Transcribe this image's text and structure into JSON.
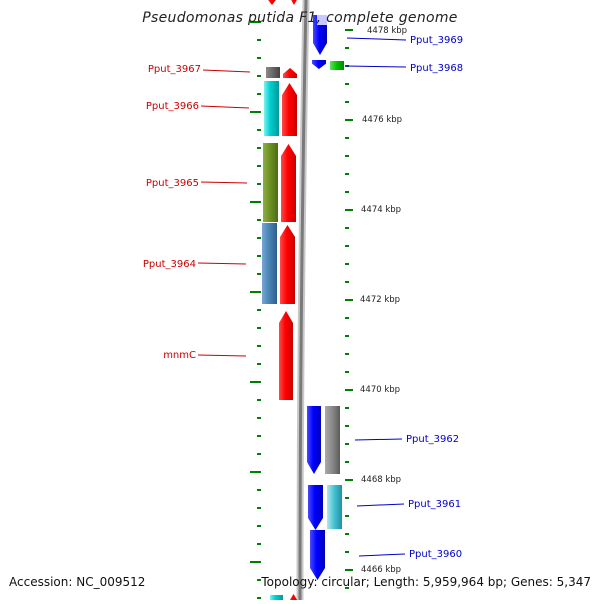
{
  "title": "Pseudomonas putida F1, complete genome",
  "footer": {
    "accession": "Accession: NC_009512",
    "topology": "Topology: circular; Length: 5,959,964 bp; Genes: 5,347"
  },
  "colors": {
    "forward": "#ff0000",
    "reverse": "#0000ff",
    "backbone": "#8a8a8a",
    "tick": "#008000",
    "left_label": "#cc0000",
    "right_label": "#0000cc"
  },
  "scale_labels": [
    "4478 kbp",
    "4476 kbp",
    "4474 kbp",
    "4472 kbp",
    "4470 kbp",
    "4468 kbp",
    "4466 kbp"
  ],
  "left_genes": [
    {
      "name": "Pput_3967",
      "cog_color": "#666666"
    },
    {
      "name": "Pput_3966",
      "cog_color": "#00cccc"
    },
    {
      "name": "Pput_3965",
      "cog_color": "#6b8e23"
    },
    {
      "name": "Pput_3964",
      "cog_color": "#4682b4"
    },
    {
      "name": "mnmC",
      "cog_color": ""
    }
  ],
  "right_genes": [
    {
      "name": "Pput_3969",
      "cog_color": ""
    },
    {
      "name": "Pput_3968",
      "cog_color": "#00cc00"
    },
    {
      "name": "Pput_3962",
      "cog_color": "#707070"
    },
    {
      "name": "Pput_3961",
      "cog_color": "#40c0d0"
    },
    {
      "name": "Pput_3960",
      "cog_color": ""
    }
  ]
}
